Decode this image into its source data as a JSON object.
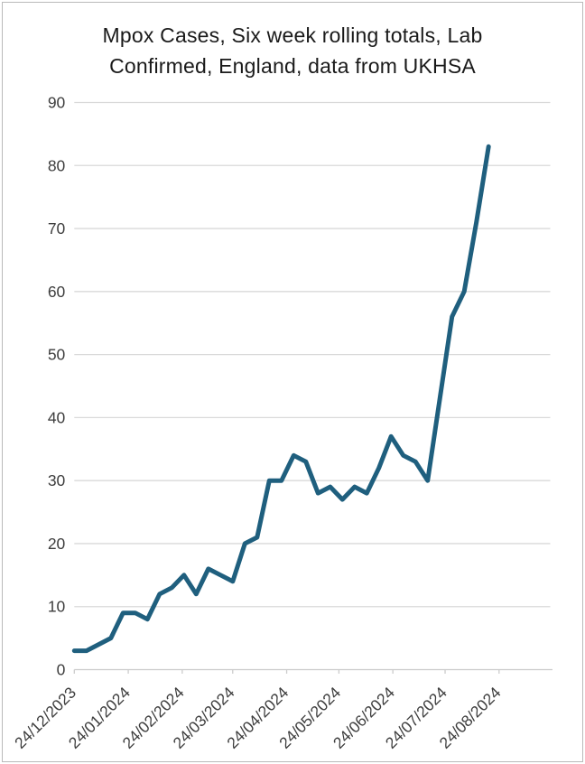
{
  "chart": {
    "title_line1": "Mpox Cases, Six week rolling totals, Lab",
    "title_line2": "Confirmed, England, data from UKHSA"
  },
  "chart_data": {
    "type": "line",
    "title": "Mpox Cases, Six week rolling totals, Lab Confirmed, England, data from UKHSA",
    "x": [
      "24/12/2023",
      "31/12/2023",
      "07/01/2024",
      "14/01/2024",
      "21/01/2024",
      "28/01/2024",
      "04/02/2024",
      "11/02/2024",
      "18/02/2024",
      "25/02/2024",
      "03/03/2024",
      "10/03/2024",
      "17/03/2024",
      "24/03/2024",
      "31/03/2024",
      "07/04/2024",
      "14/04/2024",
      "21/04/2024",
      "28/04/2024",
      "05/05/2024",
      "12/05/2024",
      "19/05/2024",
      "26/05/2024",
      "02/06/2024",
      "09/06/2024",
      "16/06/2024",
      "23/06/2024",
      "30/06/2024",
      "07/07/2024",
      "14/07/2024",
      "21/07/2024",
      "28/07/2024",
      "04/08/2024",
      "11/08/2024",
      "18/08/2024"
    ],
    "values": [
      3,
      3,
      4,
      5,
      9,
      9,
      8,
      12,
      13,
      15,
      12,
      16,
      15,
      14,
      20,
      21,
      30,
      30,
      34,
      33,
      28,
      29,
      27,
      29,
      28,
      32,
      37,
      34,
      33,
      30,
      43,
      56,
      60,
      71,
      83
    ],
    "x_tick_labels": [
      "24/12/2023",
      "24/01/2024",
      "24/02/2024",
      "24/03/2024",
      "24/04/2024",
      "24/05/2024",
      "24/06/2024",
      "24/07/2024",
      "24/08/2024"
    ],
    "y_ticks": [
      0,
      10,
      20,
      30,
      40,
      50,
      60,
      70,
      80,
      90
    ],
    "ylim": [
      0,
      90
    ],
    "grid": "horizontal",
    "legend": "none",
    "line_color": "#1F5F7E",
    "gridline_color": "#D9D9D9",
    "axis_color": "#CCCCCC",
    "label_color": "#3D3D3D"
  }
}
